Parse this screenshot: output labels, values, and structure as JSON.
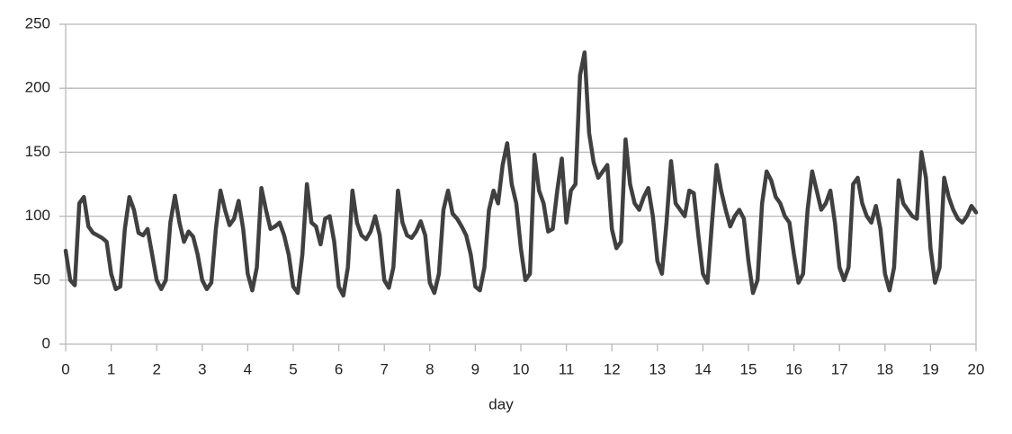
{
  "chart_data": {
    "type": "line",
    "x_label": "day",
    "xlim": [
      0,
      20
    ],
    "xticks": [
      0,
      1,
      2,
      3,
      4,
      5,
      6,
      7,
      8,
      9,
      10,
      11,
      12,
      13,
      14,
      15,
      16,
      17,
      18,
      19,
      20
    ],
    "ylim": [
      0,
      250
    ],
    "yticks": [
      0,
      50,
      100,
      150,
      200,
      250
    ],
    "grid": true,
    "x": [
      0,
      0.1,
      0.2,
      0.3,
      0.4,
      0.5,
      0.6,
      0.7,
      0.8,
      0.9,
      1,
      1.1,
      1.2,
      1.3,
      1.4,
      1.5,
      1.6,
      1.7,
      1.8,
      1.9,
      2,
      2.1,
      2.2,
      2.3,
      2.4,
      2.5,
      2.6,
      2.7,
      2.8,
      2.9,
      3,
      3.1,
      3.2,
      3.3,
      3.4,
      3.5,
      3.6,
      3.7,
      3.8,
      3.9,
      4,
      4.1,
      4.2,
      4.3,
      4.4,
      4.5,
      4.6,
      4.7,
      4.8,
      4.9,
      5,
      5.1,
      5.2,
      5.3,
      5.4,
      5.5,
      5.6,
      5.7,
      5.8,
      5.9,
      6,
      6.1,
      6.2,
      6.3,
      6.4,
      6.5,
      6.6,
      6.7,
      6.8,
      6.9,
      7,
      7.1,
      7.2,
      7.3,
      7.4,
      7.5,
      7.6,
      7.7,
      7.8,
      7.9,
      8,
      8.1,
      8.2,
      8.3,
      8.4,
      8.5,
      8.6,
      8.7,
      8.8,
      8.9,
      9,
      9.1,
      9.2,
      9.3,
      9.4,
      9.5,
      9.6,
      9.7,
      9.8,
      9.9,
      10,
      10.1,
      10.2,
      10.3,
      10.4,
      10.5,
      10.6,
      10.7,
      10.8,
      10.9,
      11,
      11.1,
      11.2,
      11.3,
      11.4,
      11.5,
      11.6,
      11.7,
      11.8,
      11.9,
      12,
      12.1,
      12.2,
      12.3,
      12.4,
      12.5,
      12.6,
      12.7,
      12.8,
      12.9,
      13,
      13.1,
      13.2,
      13.3,
      13.4,
      13.5,
      13.6,
      13.7,
      13.8,
      13.9,
      14,
      14.1,
      14.2,
      14.3,
      14.4,
      14.5,
      14.6,
      14.7,
      14.8,
      14.9,
      15,
      15.1,
      15.2,
      15.3,
      15.4,
      15.5,
      15.6,
      15.7,
      15.8,
      15.9,
      16,
      16.1,
      16.2,
      16.3,
      16.4,
      16.5,
      16.6,
      16.7,
      16.8,
      16.9,
      17,
      17.1,
      17.2,
      17.3,
      17.4,
      17.5,
      17.6,
      17.7,
      17.8,
      17.9,
      18,
      18.1,
      18.2,
      18.3,
      18.4,
      18.5,
      18.6,
      18.7,
      18.8,
      18.9,
      19,
      19.1,
      19.2,
      19.3,
      19.4,
      19.5,
      19.6,
      19.7,
      19.8,
      19.9,
      20
    ],
    "series": [
      {
        "color": "#404040",
        "values": [
          73,
          50,
          46,
          110,
          115,
          92,
          87,
          85,
          83,
          80,
          55,
          43,
          45,
          90,
          115,
          105,
          87,
          85,
          90,
          70,
          50,
          43,
          50,
          95,
          116,
          95,
          80,
          88,
          84,
          70,
          50,
          43,
          48,
          90,
          120,
          105,
          93,
          98,
          112,
          90,
          55,
          42,
          60,
          122,
          105,
          90,
          92,
          95,
          85,
          70,
          45,
          40,
          70,
          125,
          95,
          92,
          78,
          98,
          100,
          80,
          45,
          38,
          60,
          120,
          95,
          85,
          82,
          88,
          100,
          85,
          50,
          44,
          60,
          120,
          95,
          85,
          83,
          88,
          96,
          85,
          48,
          40,
          55,
          105,
          120,
          102,
          98,
          92,
          85,
          70,
          45,
          42,
          60,
          105,
          120,
          110,
          140,
          157,
          125,
          110,
          75,
          50,
          55,
          148,
          120,
          110,
          88,
          90,
          120,
          145,
          95,
          120,
          125,
          210,
          228,
          165,
          142,
          130,
          135,
          140,
          90,
          75,
          80,
          160,
          125,
          110,
          105,
          115,
          122,
          100,
          65,
          55,
          95,
          143,
          110,
          105,
          100,
          120,
          118,
          85,
          55,
          48,
          95,
          140,
          120,
          105,
          92,
          100,
          105,
          98,
          65,
          40,
          50,
          110,
          135,
          128,
          115,
          110,
          100,
          95,
          70,
          48,
          55,
          105,
          135,
          120,
          105,
          110,
          120,
          95,
          60,
          50,
          60,
          125,
          130,
          110,
          100,
          95,
          108,
          90,
          55,
          42,
          60,
          128,
          110,
          105,
          100,
          98,
          150,
          130,
          75,
          48,
          60,
          130,
          115,
          105,
          98,
          95,
          100,
          108,
          103
        ]
      }
    ]
  }
}
